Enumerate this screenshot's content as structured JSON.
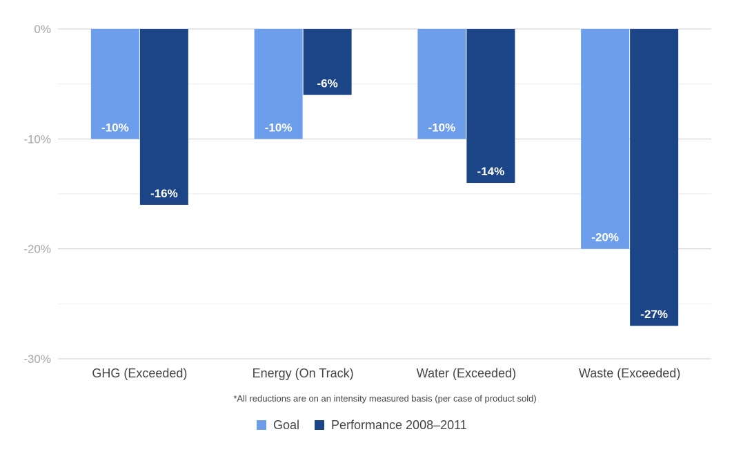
{
  "chart_data": {
    "type": "bar",
    "categories": [
      "GHG (Exceeded)",
      "Energy (On Track)",
      "Water (Exceeded)",
      "Waste (Exceeded)"
    ],
    "series": [
      {
        "name": "Goal",
        "color": "#6d9eeb",
        "values": [
          -10,
          -10,
          -10,
          -20
        ],
        "labels": [
          "-10%",
          "-10%",
          "-10%",
          "-20%"
        ]
      },
      {
        "name": "Performance 2008–2011",
        "color": "#1c4587",
        "values": [
          -16,
          -6,
          -14,
          -27
        ],
        "labels": [
          "-16%",
          "-6%",
          "-14%",
          "-27%"
        ]
      }
    ],
    "ylim": [
      -30,
      0
    ],
    "yticks": [
      0,
      -10,
      -20,
      -30
    ],
    "ytick_labels": [
      "0%",
      "-10%",
      "-20%",
      "-30%"
    ],
    "minor_grid": true,
    "legend_position": "bottom",
    "annotation": "*All reductions are on an intensity measured basis (per case of product sold)",
    "title": "",
    "xlabel": "",
    "ylabel": ""
  }
}
